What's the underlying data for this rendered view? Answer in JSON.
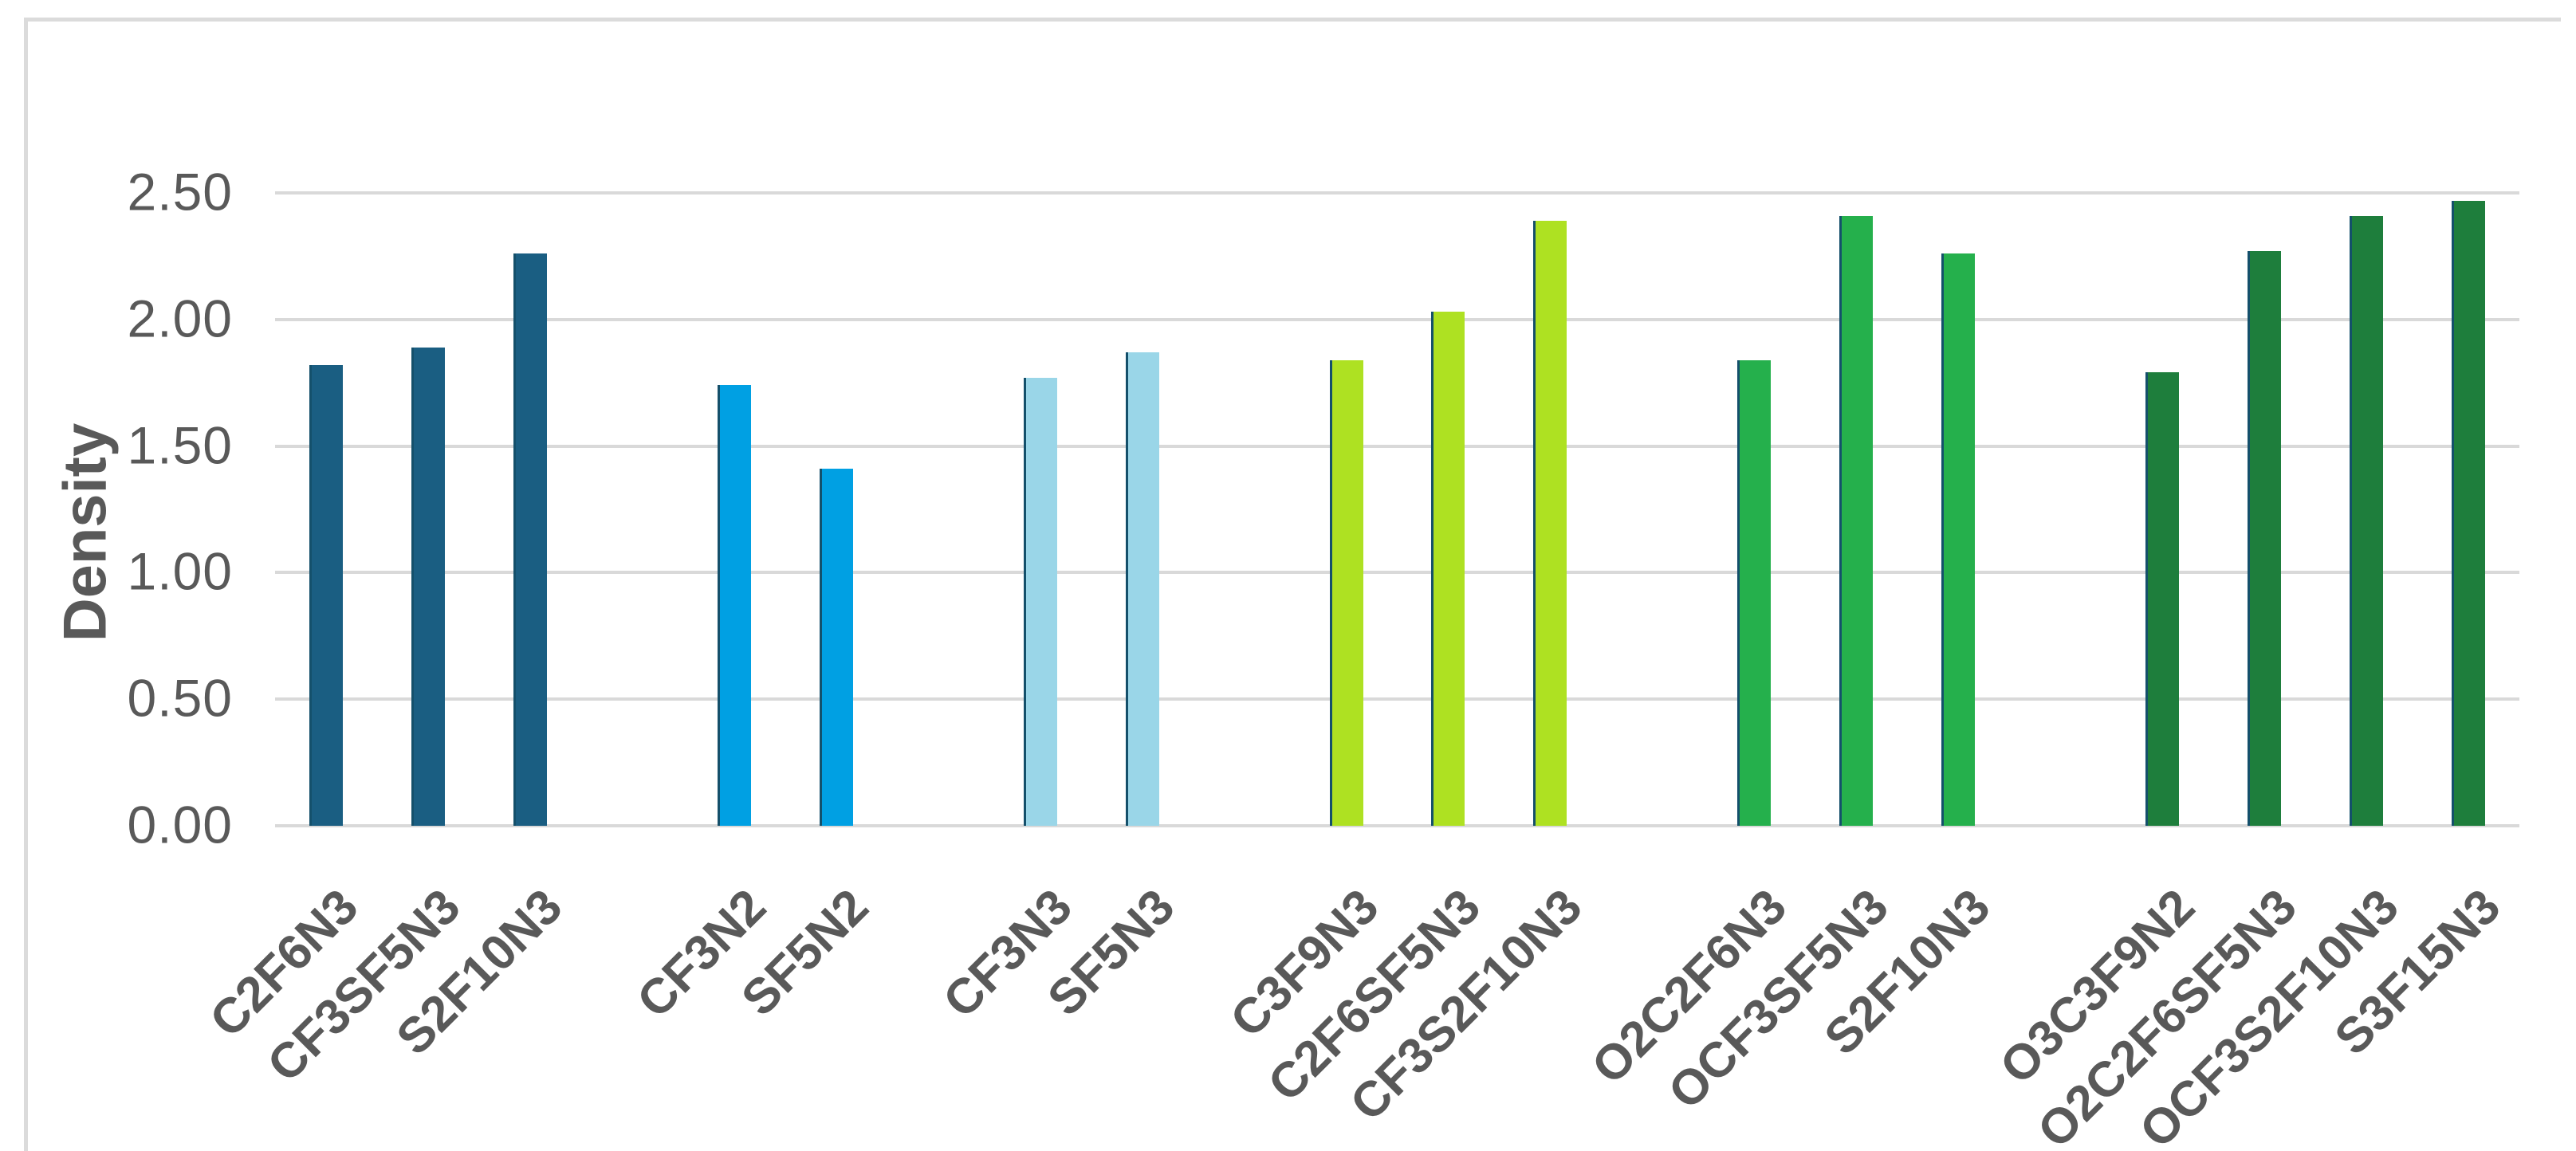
{
  "chart_data": {
    "type": "bar",
    "title": "",
    "xlabel": "",
    "ylabel": "Density",
    "ylim": [
      0,
      2.5
    ],
    "grid": true,
    "legend": "none",
    "bar_edge_color": "#14506B",
    "colors": {
      "text": "#595959",
      "gridline": "#D9D9D9",
      "frame_border": "#DBDBDB",
      "background": "#FFFFFF"
    },
    "yticks": [
      {
        "label": "0.00",
        "value": 0
      },
      {
        "label": "0.50",
        "value": 0.5
      },
      {
        "label": "1.00",
        "value": 1
      },
      {
        "label": "1.50",
        "value": 1.5
      },
      {
        "label": "2.00",
        "value": 2
      },
      {
        "label": "2.50",
        "value": 2.5
      }
    ],
    "groups": [
      {
        "name": "group-1-dark-teal",
        "color": "#1A5E82",
        "bars": [
          {
            "label": "C2F6N3",
            "value": 1.82
          },
          {
            "label": "CF3SF5N3",
            "value": 1.89
          },
          {
            "label": "S2F10N3",
            "value": 2.26
          }
        ]
      },
      {
        "name": "group-2-bright-blue",
        "color": "#00A0E3",
        "bars": [
          {
            "label": "CF3N2",
            "value": 1.74
          },
          {
            "label": "SF5N2",
            "value": 1.41
          }
        ]
      },
      {
        "name": "group-3-light-blue",
        "color": "#9AD6E8",
        "bars": [
          {
            "label": "CF3N3",
            "value": 1.77
          },
          {
            "label": "SF5N3",
            "value": 1.87
          }
        ]
      },
      {
        "name": "group-4-lime-green",
        "color": "#AEE122",
        "bars": [
          {
            "label": "C3F9N3",
            "value": 1.84
          },
          {
            "label": "C2F6SF5N3",
            "value": 2.03
          },
          {
            "label": "CF3S2F10N3",
            "value": 2.39
          }
        ]
      },
      {
        "name": "group-5-medium-green",
        "color": "#25B04C",
        "bars": [
          {
            "label": "O2C2F6N3",
            "value": 1.84
          },
          {
            "label": "OCF3SF5N3",
            "value": 2.41
          },
          {
            "label": "S2F10N3",
            "value": 2.26
          }
        ]
      },
      {
        "name": "group-6-dark-green",
        "color": "#1E7E3C",
        "bars": [
          {
            "label": "O3C3F9N2",
            "value": 1.79
          },
          {
            "label": "O2C2F6SF5N3",
            "value": 2.27
          },
          {
            "label": "OCF3S2F10N3",
            "value": 2.41
          },
          {
            "label": "S3F15N3",
            "value": 2.47
          }
        ]
      }
    ]
  }
}
